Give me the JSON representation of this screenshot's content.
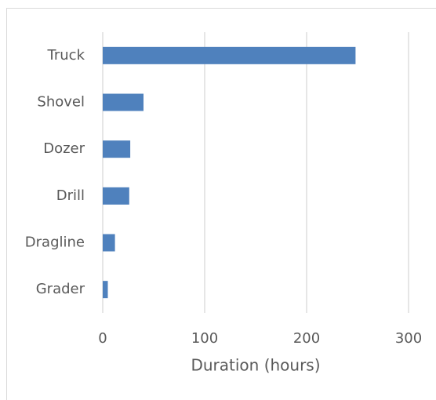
{
  "chart_data": {
    "type": "bar",
    "orientation": "horizontal",
    "categories": [
      "Truck",
      "Shovel",
      "Dozer",
      "Drill",
      "Dragline",
      "Grader"
    ],
    "values": [
      248,
      40,
      27,
      26,
      12,
      5
    ],
    "color": "#4f81bd",
    "xlim": [
      0,
      300
    ],
    "xticks": [
      0,
      100,
      200,
      300
    ],
    "x_label": "Duration (hours)",
    "grid": true
  }
}
